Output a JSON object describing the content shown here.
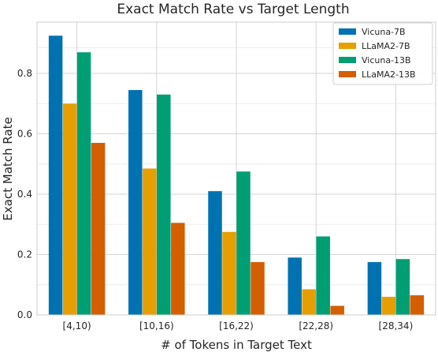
{
  "chart_data": {
    "type": "bar",
    "title": "Exact Match Rate vs Target Length",
    "xlabel": "# of Tokens in Target Text",
    "ylabel": "Exact Match Rate",
    "categories": [
      "[4,10)",
      "[10,16)",
      "[16,22)",
      "[22,28)",
      "[28,34)"
    ],
    "ylim": [
      0,
      0.97
    ],
    "yticks": [
      0.0,
      0.2,
      0.4,
      0.6,
      0.8
    ],
    "ytick_labels": [
      "0.0",
      "0.2",
      "0.4",
      "0.6",
      "0.8"
    ],
    "grid": true,
    "legend_position": "top-right",
    "series": [
      {
        "name": "Vicuna-7B",
        "color": "#0072b2",
        "values": [
          0.925,
          0.745,
          0.41,
          0.19,
          0.175
        ]
      },
      {
        "name": "LLaMA2-7B",
        "color": "#e69f00",
        "values": [
          0.7,
          0.485,
          0.275,
          0.085,
          0.06
        ]
      },
      {
        "name": "Vicuna-13B",
        "color": "#009e73",
        "values": [
          0.87,
          0.73,
          0.475,
          0.26,
          0.185
        ]
      },
      {
        "name": "LLaMA2-13B",
        "color": "#d55e00",
        "values": [
          0.57,
          0.305,
          0.175,
          0.03,
          0.065
        ]
      }
    ]
  }
}
